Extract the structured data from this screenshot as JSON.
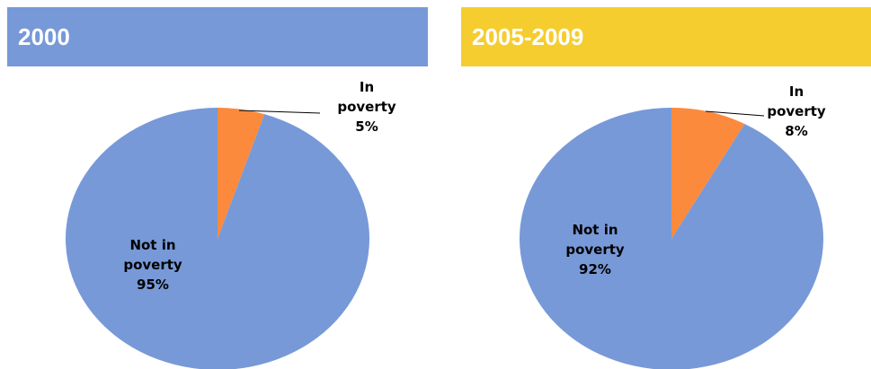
{
  "chart_data": [
    {
      "type": "pie",
      "title": "2000",
      "banner_color": "#7799d8",
      "slices": [
        {
          "label_lines": [
            "In",
            "poverty",
            "5%"
          ],
          "value": 5,
          "color": "#fb8a3c"
        },
        {
          "label_lines": [
            "Not in",
            "poverty",
            "95%"
          ],
          "value": 95,
          "color": "#7799d8"
        }
      ]
    },
    {
      "type": "pie",
      "title": "2005-2009",
      "banner_color": "#f5cd2f",
      "slices": [
        {
          "label_lines": [
            "In",
            "poverty",
            "8%"
          ],
          "value": 8,
          "color": "#fb8a3c"
        },
        {
          "label_lines": [
            "Not in",
            "poverty",
            "92%"
          ],
          "value": 92,
          "color": "#7799d8"
        }
      ]
    }
  ]
}
